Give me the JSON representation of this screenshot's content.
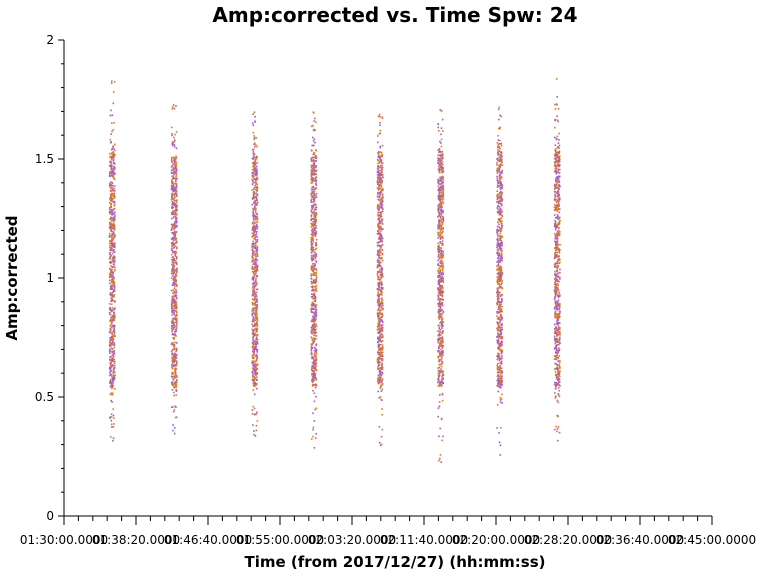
{
  "chart_data": {
    "type": "scatter",
    "title": "Amp:corrected vs. Time Spw: 24",
    "xlabel": "Time (from 2017/12/27) (hh:mm:ss)",
    "ylabel": "Amp:corrected",
    "xlim": [
      "01:30:00.0000",
      "02:45:00.0000"
    ],
    "ylim": [
      0,
      2
    ],
    "yticks": [
      "0",
      "0.5",
      "1",
      "1.5",
      "2"
    ],
    "xticks": [
      "01:30:00.0000",
      "01:38:20.0000",
      "01:46:40.0000",
      "01:55:00.0000",
      "02:03:20.0000",
      "02:11:40.0000",
      "02:20:00.0000",
      "02:28:20.0000",
      "02:36:40.0000",
      "02:45:00.0000"
    ],
    "grid": false,
    "point_colors": [
      "#e07b18",
      "#a05cd8"
    ],
    "scans": [
      {
        "time": "01:35:30",
        "min": 0.32,
        "max": 1.83,
        "core_low": 0.55,
        "core_high": 1.55
      },
      {
        "time": "01:42:40",
        "min": 0.35,
        "max": 1.73,
        "core_low": 0.55,
        "core_high": 1.51
      },
      {
        "time": "01:52:00",
        "min": 0.34,
        "max": 1.7,
        "core_low": 0.55,
        "core_high": 1.51
      },
      {
        "time": "01:58:50",
        "min": 0.29,
        "max": 1.7,
        "core_low": 0.55,
        "core_high": 1.51
      },
      {
        "time": "02:06:30",
        "min": 0.3,
        "max": 1.69,
        "core_low": 0.55,
        "core_high": 1.51
      },
      {
        "time": "02:13:30",
        "min": 0.23,
        "max": 1.71,
        "core_low": 0.55,
        "core_high": 1.52
      },
      {
        "time": "02:20:20",
        "min": 0.26,
        "max": 1.72,
        "core_low": 0.55,
        "core_high": 1.53
      },
      {
        "time": "02:27:00",
        "min": 0.32,
        "max": 1.84,
        "core_low": 0.55,
        "core_high": 1.56
      }
    ]
  }
}
